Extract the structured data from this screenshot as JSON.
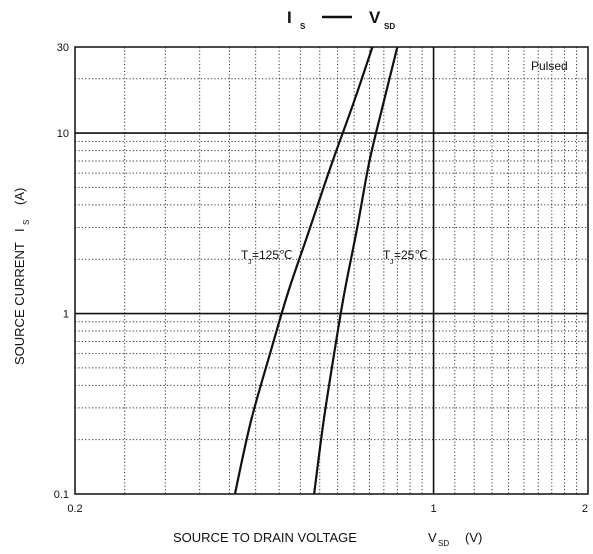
{
  "chart_data": {
    "type": "line",
    "title": {
      "left": "I",
      "left_sub": "S",
      "right": "V",
      "right_sub": "SD"
    },
    "xlabel": {
      "text": "SOURCE TO DRAIN VOLTAGE",
      "symbol": "V",
      "symbol_sub": "SD",
      "unit": "(V)"
    },
    "ylabel": {
      "text": "SOURCE CURRENT",
      "symbol": "I",
      "symbol_sub": "S",
      "unit": "(A)"
    },
    "xscale": "log",
    "yscale": "log",
    "xlim": [
      0.2,
      2
    ],
    "ylim": [
      0.1,
      30
    ],
    "x_ticks": [
      {
        "value": 0.2,
        "label": "0.2"
      },
      {
        "value": 1,
        "label": "1"
      },
      {
        "value": 2,
        "label": "2"
      }
    ],
    "y_ticks": [
      {
        "value": 0.1,
        "label": "0.1"
      },
      {
        "value": 1,
        "label": "1"
      },
      {
        "value": 10,
        "label": "10"
      },
      {
        "value": 30,
        "label": "30"
      }
    ],
    "grid": true,
    "annotation": "Pulsed",
    "series": [
      {
        "name": "TJ=125℃",
        "label_main": "T",
        "label_sub": "J",
        "label_rest": "=125℃",
        "x": [
          0.41,
          0.44,
          0.48,
          0.52,
          0.57,
          0.63,
          0.7,
          0.76
        ],
        "y": [
          0.1,
          0.25,
          0.6,
          1.3,
          2.8,
          6.5,
          15,
          30
        ]
      },
      {
        "name": "TJ=25℃",
        "label_main": "T",
        "label_sub": "J",
        "label_rest": "=25℃",
        "x": [
          0.585,
          0.61,
          0.64,
          0.67,
          0.71,
          0.75,
          0.8,
          0.85
        ],
        "y": [
          0.1,
          0.25,
          0.6,
          1.3,
          3,
          7,
          15,
          30
        ]
      }
    ]
  }
}
